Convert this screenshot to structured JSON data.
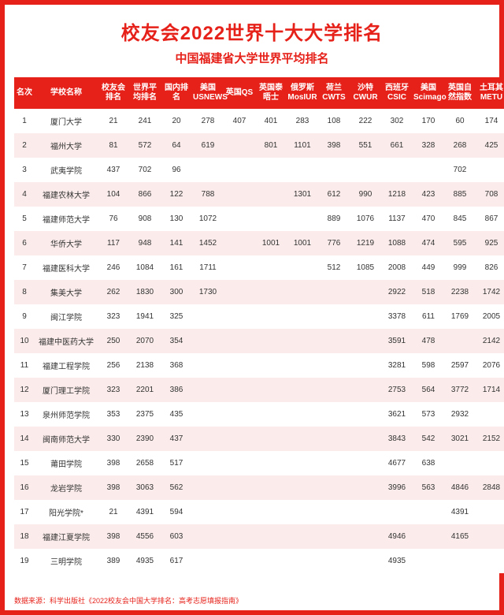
{
  "title": "校友会2022世界十大大学排名",
  "subtitle": "中国福建省大学世界平均排名",
  "footer": "数据来源：科学出版社《2022校友会中国大学排名：高考志愿填报指南》",
  "colors": {
    "brand": "#e6211a",
    "stripe": "#fbeceb",
    "text": "#333333",
    "bg": "#ffffff"
  },
  "columns": [
    "名次",
    "学校名称",
    "校友会排名",
    "世界平均排名",
    "国内排名",
    "美国USNEWS",
    "英国QS",
    "英国泰晤士",
    "俄罗斯MosIUR",
    "荷兰CWTS",
    "沙特CWUR",
    "西班牙CSIC",
    "美国Scimago",
    "英国自然指数",
    "土耳其METU"
  ],
  "rows": [
    [
      "1",
      "厦门大学",
      "21",
      "241",
      "20",
      "278",
      "407",
      "401",
      "283",
      "108",
      "222",
      "302",
      "170",
      "60",
      "174"
    ],
    [
      "2",
      "福州大学",
      "81",
      "572",
      "64",
      "619",
      "",
      "801",
      "1101",
      "398",
      "551",
      "661",
      "328",
      "268",
      "425"
    ],
    [
      "3",
      "武夷学院",
      "437",
      "702",
      "96",
      "",
      "",
      "",
      "",
      "",
      "",
      "",
      "",
      "702",
      ""
    ],
    [
      "4",
      "福建农林大学",
      "104",
      "866",
      "122",
      "788",
      "",
      "",
      "1301",
      "612",
      "990",
      "1218",
      "423",
      "885",
      "708"
    ],
    [
      "5",
      "福建师范大学",
      "76",
      "908",
      "130",
      "1072",
      "",
      "",
      "",
      "889",
      "1076",
      "1137",
      "470",
      "845",
      "867"
    ],
    [
      "6",
      "华侨大学",
      "117",
      "948",
      "141",
      "1452",
      "",
      "1001",
      "1001",
      "776",
      "1219",
      "1088",
      "474",
      "595",
      "925"
    ],
    [
      "7",
      "福建医科大学",
      "246",
      "1084",
      "161",
      "1711",
      "",
      "",
      "",
      "512",
      "1085",
      "2008",
      "449",
      "999",
      "826"
    ],
    [
      "8",
      "集美大学",
      "262",
      "1830",
      "300",
      "1730",
      "",
      "",
      "",
      "",
      "",
      "2922",
      "518",
      "2238",
      "1742"
    ],
    [
      "9",
      "闽江学院",
      "323",
      "1941",
      "325",
      "",
      "",
      "",
      "",
      "",
      "",
      "3378",
      "611",
      "1769",
      "2005"
    ],
    [
      "10",
      "福建中医药大学",
      "250",
      "2070",
      "354",
      "",
      "",
      "",
      "",
      "",
      "",
      "3591",
      "478",
      "",
      "2142"
    ],
    [
      "11",
      "福建工程学院",
      "256",
      "2138",
      "368",
      "",
      "",
      "",
      "",
      "",
      "",
      "3281",
      "598",
      "2597",
      "2076"
    ],
    [
      "12",
      "厦门理工学院",
      "323",
      "2201",
      "386",
      "",
      "",
      "",
      "",
      "",
      "",
      "2753",
      "564",
      "3772",
      "1714"
    ],
    [
      "13",
      "泉州师范学院",
      "353",
      "2375",
      "435",
      "",
      "",
      "",
      "",
      "",
      "",
      "3621",
      "573",
      "2932",
      ""
    ],
    [
      "14",
      "闽南师范大学",
      "330",
      "2390",
      "437",
      "",
      "",
      "",
      "",
      "",
      "",
      "3843",
      "542",
      "3021",
      "2152"
    ],
    [
      "15",
      "莆田学院",
      "398",
      "2658",
      "517",
      "",
      "",
      "",
      "",
      "",
      "",
      "4677",
      "638",
      "",
      ""
    ],
    [
      "16",
      "龙岩学院",
      "398",
      "3063",
      "562",
      "",
      "",
      "",
      "",
      "",
      "",
      "3996",
      "563",
      "4846",
      "2848"
    ],
    [
      "17",
      "阳光学院*",
      "21",
      "4391",
      "594",
      "",
      "",
      "",
      "",
      "",
      "",
      "",
      "",
      "4391",
      ""
    ],
    [
      "18",
      "福建江夏学院",
      "398",
      "4556",
      "603",
      "",
      "",
      "",
      "",
      "",
      "",
      "4946",
      "",
      "4165",
      ""
    ],
    [
      "19",
      "三明学院",
      "389",
      "4935",
      "617",
      "",
      "",
      "",
      "",
      "",
      "",
      "4935",
      "",
      "",
      ""
    ]
  ],
  "col_classes": [
    "col-rank",
    "col-name",
    "col-v",
    "col-v",
    "col-v",
    "col-v",
    "col-v",
    "col-v",
    "col-v",
    "col-v",
    "col-v",
    "col-v",
    "col-v",
    "col-v",
    "col-v"
  ]
}
